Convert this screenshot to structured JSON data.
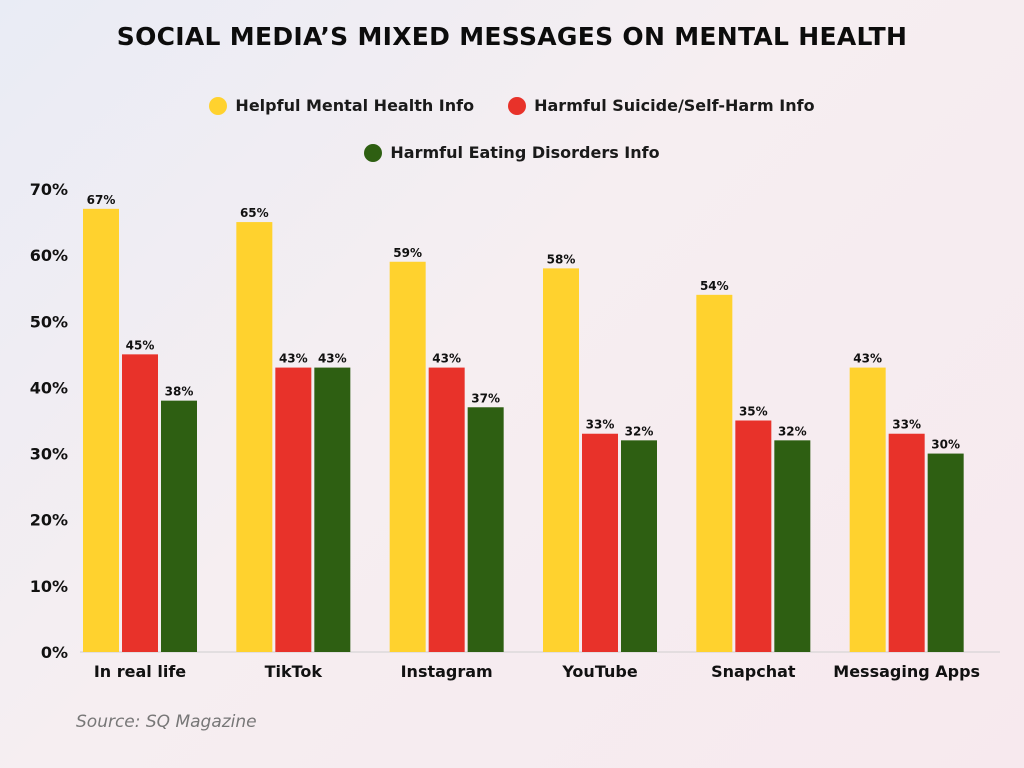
{
  "chart_data": {
    "type": "bar",
    "title": "SOCIAL MEDIA’S MIXED MESSAGES ON MENTAL HEALTH",
    "categories": [
      "In real life",
      "TikTok",
      "Instagram",
      "YouTube",
      "Snapchat",
      "Messaging Apps"
    ],
    "series": [
      {
        "name": "Helpful Mental Health Info",
        "color": "#FFD22E",
        "values": [
          67,
          65,
          59,
          58,
          54,
          43
        ]
      },
      {
        "name": "Harmful Suicide/Self-Harm Info",
        "color": "#E8322A",
        "values": [
          45,
          43,
          43,
          33,
          35,
          33
        ]
      },
      {
        "name": "Harmful Eating Disorders Info",
        "color": "#2E5F12",
        "values": [
          38,
          43,
          37,
          32,
          32,
          30
        ]
      }
    ],
    "ylim": [
      0,
      70
    ],
    "yticks": [
      0,
      10,
      20,
      30,
      40,
      50,
      60,
      70
    ],
    "value_suffix": "%",
    "grid": false,
    "legend_position": "top-center",
    "source": "Source: SQ Magazine"
  }
}
